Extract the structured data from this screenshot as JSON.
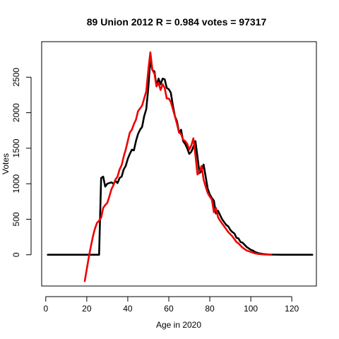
{
  "chart_data": {
    "type": "line",
    "title": "89 Union 2012 R = 0.984 votes = 97317",
    "xlabel": "Age in 2020",
    "ylabel": "Votes",
    "xlim": [
      -2,
      132
    ],
    "ylim": [
      -440,
      3000
    ],
    "xticks": [
      0,
      20,
      40,
      60,
      80,
      100,
      120
    ],
    "yticks": [
      0,
      500,
      1000,
      1500,
      2000,
      2500
    ],
    "grid": false,
    "series": [
      {
        "color": "#000000",
        "x": [
          1,
          10,
          20,
          26,
          27,
          28,
          29,
          30,
          31,
          32,
          33,
          34,
          35,
          36,
          37,
          38,
          39,
          40,
          41,
          42,
          43,
          44,
          45,
          46,
          47,
          48,
          49,
          50,
          51,
          52,
          53,
          54,
          55,
          56,
          57,
          58,
          59,
          60,
          61,
          62,
          63,
          64,
          65,
          66,
          67,
          68,
          69,
          70,
          71,
          72,
          73,
          74,
          75,
          76,
          77,
          78,
          79,
          80,
          81,
          82,
          83,
          84,
          85,
          86,
          87,
          88,
          89,
          90,
          91,
          92,
          93,
          94,
          95,
          96,
          97,
          98,
          99,
          100,
          101,
          102,
          103,
          104,
          105,
          106,
          107,
          108,
          109,
          110,
          115,
          120,
          125,
          130
        ],
        "y": [
          0,
          0,
          0,
          0,
          1080,
          1100,
          960,
          1000,
          1010,
          1020,
          1000,
          1040,
          1010,
          1080,
          1100,
          1200,
          1250,
          1350,
          1420,
          1480,
          1470,
          1600,
          1700,
          1760,
          1800,
          1950,
          2050,
          2350,
          2750,
          2600,
          2580,
          2380,
          2480,
          2400,
          2480,
          2470,
          2350,
          2330,
          2280,
          2100,
          1950,
          1880,
          1720,
          1760,
          1600,
          1560,
          1500,
          1420,
          1450,
          1520,
          1600,
          1380,
          1150,
          1180,
          1270,
          1100,
          930,
          850,
          800,
          760,
          580,
          620,
          560,
          500,
          460,
          420,
          400,
          350,
          320,
          300,
          240,
          230,
          180,
          170,
          140,
          110,
          90,
          70,
          60,
          40,
          30,
          20,
          15,
          10,
          8,
          5,
          3,
          2,
          0,
          0,
          0,
          0
        ]
      },
      {
        "color": "#ee0000",
        "x": [
          19,
          20,
          21,
          22,
          23,
          24,
          25,
          26,
          27,
          28,
          29,
          30,
          31,
          32,
          33,
          34,
          35,
          36,
          37,
          38,
          39,
          40,
          41,
          42,
          43,
          44,
          45,
          46,
          47,
          48,
          49,
          50,
          51,
          52,
          53,
          54,
          55,
          56,
          57,
          58,
          59,
          60,
          61,
          62,
          63,
          64,
          65,
          66,
          67,
          68,
          69,
          70,
          71,
          72,
          73,
          74,
          75,
          76,
          77,
          78,
          79,
          80,
          81,
          82,
          83,
          84,
          85,
          86,
          87,
          88,
          89,
          90,
          91,
          92,
          93,
          94,
          95,
          96,
          97,
          98,
          99,
          100,
          101,
          102,
          103,
          104,
          105,
          106,
          107,
          108,
          109,
          110
        ],
        "y": [
          -370,
          -200,
          -30,
          120,
          260,
          370,
          450,
          480,
          520,
          660,
          700,
          730,
          820,
          920,
          980,
          1060,
          1100,
          1200,
          1260,
          1380,
          1480,
          1600,
          1720,
          1760,
          1840,
          1900,
          2020,
          2060,
          2100,
          2200,
          2300,
          2600,
          2850,
          2600,
          2550,
          2370,
          2420,
          2320,
          2400,
          2350,
          2200,
          2200,
          2150,
          2050,
          1950,
          1840,
          1720,
          1700,
          1620,
          1600,
          1560,
          1480,
          1540,
          1640,
          1400,
          1130,
          1170,
          1250,
          1060,
          960,
          870,
          820,
          780,
          600,
          660,
          530,
          480,
          440,
          400,
          360,
          320,
          290,
          260,
          220,
          180,
          160,
          130,
          100,
          80,
          60,
          50,
          40,
          30,
          20,
          15,
          10,
          8,
          5,
          3,
          2,
          1,
          0
        ]
      }
    ]
  }
}
